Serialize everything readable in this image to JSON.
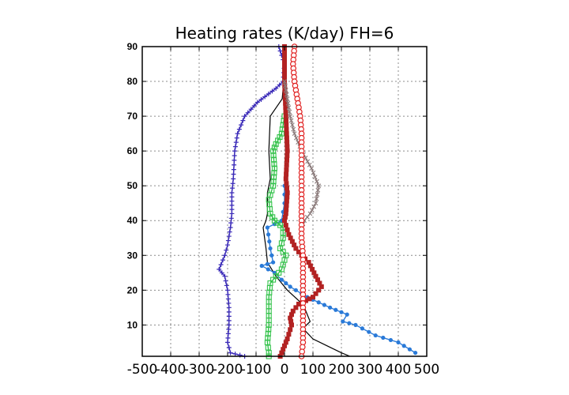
{
  "chart_data": {
    "type": "line",
    "title": "Heating rates (K/day) FH=6",
    "xlabel": "",
    "ylabel": "",
    "xlim": [
      -500,
      500
    ],
    "ylim": [
      1,
      90
    ],
    "x_ticks": [
      -500,
      -400,
      -300,
      -200,
      -100,
      0,
      100,
      200,
      300,
      400,
      500
    ],
    "y_ticks": [
      10,
      20,
      30,
      40,
      50,
      60,
      70,
      80,
      90
    ],
    "grid": true,
    "legend": "none",
    "series": [
      {
        "color": "#000000",
        "marker": "none",
        "points": [
          [
            0,
            90
          ],
          [
            -2,
            85
          ],
          [
            -3,
            80
          ],
          [
            -8,
            75
          ],
          [
            -50,
            70
          ],
          [
            -55,
            60
          ],
          [
            -50,
            52
          ],
          [
            -60,
            48
          ],
          [
            -60,
            42
          ],
          [
            -65,
            40
          ],
          [
            -75,
            38
          ],
          [
            -65,
            32
          ],
          [
            -60,
            28
          ],
          [
            -30,
            24
          ],
          [
            10,
            20
          ],
          [
            50,
            17
          ],
          [
            70,
            15
          ],
          [
            90,
            11
          ],
          [
            65,
            9
          ],
          [
            100,
            6
          ],
          [
            150,
            4
          ],
          [
            200,
            2
          ],
          [
            230,
            1
          ]
        ]
      },
      {
        "color": "#3a2ab8",
        "marker": "plus",
        "points": [
          [
            -20,
            90
          ],
          [
            0,
            85
          ],
          [
            -5,
            80
          ],
          [
            -30,
            78
          ],
          [
            -95,
            74
          ],
          [
            -140,
            70
          ],
          [
            -165,
            65
          ],
          [
            -175,
            60
          ],
          [
            -180,
            52
          ],
          [
            -185,
            48
          ],
          [
            -185,
            42
          ],
          [
            -190,
            38
          ],
          [
            -200,
            33
          ],
          [
            -210,
            30
          ],
          [
            -230,
            26
          ],
          [
            -210,
            24
          ],
          [
            -200,
            20
          ],
          [
            -195,
            15
          ],
          [
            -195,
            10
          ],
          [
            -200,
            5
          ],
          [
            -190,
            2
          ],
          [
            -140,
            1
          ]
        ]
      },
      {
        "color": "#2a7ad8",
        "marker": "circle",
        "points": [
          [
            0,
            50
          ],
          [
            0,
            45
          ],
          [
            -10,
            40
          ],
          [
            -60,
            38
          ],
          [
            -50,
            32
          ],
          [
            -40,
            28
          ],
          [
            -80,
            27
          ],
          [
            -35,
            25
          ],
          [
            -10,
            23
          ],
          [
            20,
            21
          ],
          [
            80,
            18
          ],
          [
            160,
            15
          ],
          [
            220,
            13
          ],
          [
            205,
            11
          ],
          [
            250,
            10
          ],
          [
            320,
            7
          ],
          [
            400,
            5
          ],
          [
            460,
            2
          ]
        ]
      },
      {
        "color": "#33c24a",
        "marker": "square",
        "points": [
          [
            0,
            70
          ],
          [
            -10,
            65
          ],
          [
            -30,
            62
          ],
          [
            -40,
            60
          ],
          [
            -35,
            55
          ],
          [
            -40,
            50
          ],
          [
            -55,
            46
          ],
          [
            -50,
            42
          ],
          [
            -35,
            40
          ],
          [
            -5,
            38
          ],
          [
            -5,
            35
          ],
          [
            -15,
            32
          ],
          [
            5,
            30
          ],
          [
            -10,
            26
          ],
          [
            -30,
            24
          ],
          [
            -50,
            22
          ],
          [
            -55,
            18
          ],
          [
            -55,
            10
          ],
          [
            -60,
            5
          ],
          [
            -55,
            2
          ],
          [
            -55,
            1
          ]
        ]
      },
      {
        "color": "#b22222",
        "marker": "filled-square",
        "points": [
          [
            0,
            90
          ],
          [
            0,
            80
          ],
          [
            5,
            70
          ],
          [
            10,
            60
          ],
          [
            5,
            52
          ],
          [
            10,
            48
          ],
          [
            5,
            42
          ],
          [
            0,
            40
          ],
          [
            15,
            36
          ],
          [
            40,
            32
          ],
          [
            60,
            30
          ],
          [
            85,
            28
          ],
          [
            110,
            24
          ],
          [
            130,
            21
          ],
          [
            100,
            18
          ],
          [
            50,
            16
          ],
          [
            30,
            14
          ],
          [
            20,
            12
          ],
          [
            25,
            10
          ],
          [
            10,
            6
          ],
          [
            -5,
            3
          ],
          [
            -15,
            1
          ]
        ]
      },
      {
        "color": "#8a7a7a",
        "marker": "x",
        "points": [
          [
            0,
            80
          ],
          [
            10,
            75
          ],
          [
            20,
            70
          ],
          [
            35,
            65
          ],
          [
            60,
            60
          ],
          [
            95,
            55
          ],
          [
            120,
            50
          ],
          [
            110,
            45
          ],
          [
            90,
            42
          ],
          [
            70,
            40
          ],
          [
            60,
            38
          ]
        ]
      },
      {
        "color": "#e02020",
        "marker": "open-circle",
        "points": [
          [
            35,
            90
          ],
          [
            30,
            85
          ],
          [
            35,
            80
          ],
          [
            45,
            75
          ],
          [
            55,
            70
          ],
          [
            60,
            65
          ],
          [
            60,
            55
          ],
          [
            60,
            50
          ],
          [
            60,
            45
          ],
          [
            60,
            40
          ],
          [
            60,
            35
          ],
          [
            65,
            30
          ],
          [
            65,
            20
          ],
          [
            65,
            10
          ],
          [
            65,
            5
          ],
          [
            60,
            1
          ]
        ]
      }
    ]
  }
}
